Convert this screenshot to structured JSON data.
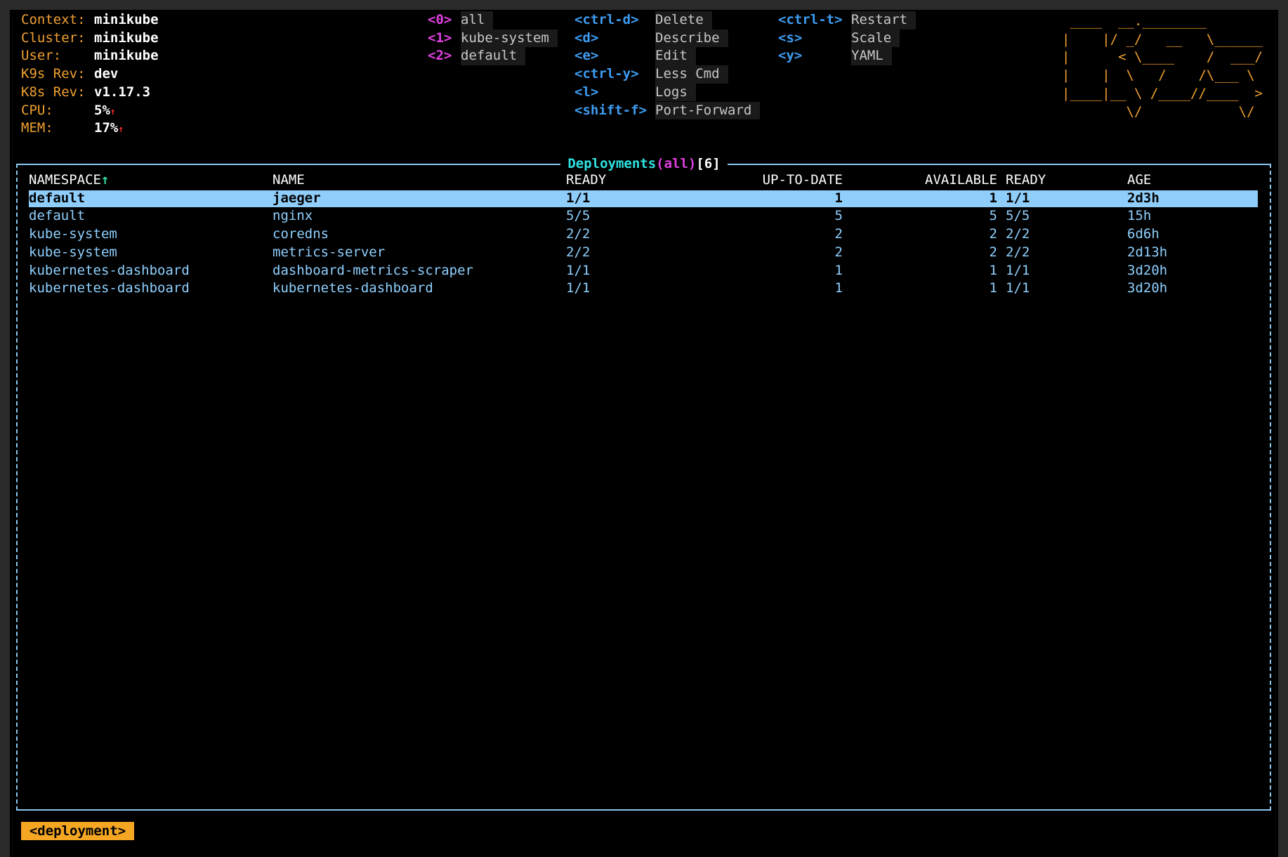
{
  "header": {
    "info": [
      {
        "label": "Context:",
        "value": "minikube"
      },
      {
        "label": "Cluster:",
        "value": "minikube"
      },
      {
        "label": "User:",
        "value": "minikube"
      },
      {
        "label": "K9s Rev:",
        "value": "dev"
      },
      {
        "label": "K8s Rev:",
        "value": "v1.17.3"
      },
      {
        "label": "CPU:",
        "value": "5%",
        "trend": "↑"
      },
      {
        "label": "MEM:",
        "value": "17%",
        "trend": "↑"
      }
    ],
    "namespaces": [
      {
        "key": "<0>",
        "name": "all"
      },
      {
        "key": "<1>",
        "name": "kube-system"
      },
      {
        "key": "<2>",
        "name": "default"
      }
    ],
    "shortcuts": [
      [
        {
          "key": "<ctrl-d>",
          "action": "Delete"
        },
        {
          "key": "<d>",
          "action": "Describe"
        },
        {
          "key": "<e>",
          "action": "Edit"
        },
        {
          "key": "<ctrl-y>",
          "action": "Less Cmd"
        },
        {
          "key": "<l>",
          "action": "Logs"
        },
        {
          "key": "<shift-f>",
          "action": "Port-Forward"
        }
      ],
      [
        {
          "key": "<ctrl-t>",
          "action": "Restart"
        },
        {
          "key": "<s>",
          "action": "Scale"
        },
        {
          "key": "<y>",
          "action": "YAML"
        }
      ]
    ],
    "logo": [
      " ____  __.________       ",
      "|    |/ _/   __   \\______",
      "|      < \\____    /  ___/",
      "|    |  \\   /    /\\___ \\ ",
      "|____|__ \\ /____//____  >",
      "        \\/            \\/ "
    ]
  },
  "table": {
    "title": "Deployments",
    "filter": "(all)",
    "count": "[6]",
    "sort_indicator": "↑",
    "columns": [
      "NAMESPACE",
      "NAME",
      "READY",
      "UP-TO-DATE",
      "AVAILABLE",
      "READY",
      "AGE"
    ],
    "rows": [
      [
        "default",
        "jaeger",
        "1/1",
        "1",
        "1",
        "1/1",
        "2d3h"
      ],
      [
        "default",
        "nginx",
        "5/5",
        "5",
        "5",
        "5/5",
        "15h"
      ],
      [
        "kube-system",
        "coredns",
        "2/2",
        "2",
        "2",
        "2/2",
        "6d6h"
      ],
      [
        "kube-system",
        "metrics-server",
        "2/2",
        "2",
        "2",
        "2/2",
        "2d13h"
      ],
      [
        "kubernetes-dashboard",
        "dashboard-metrics-scraper",
        "1/1",
        "1",
        "1",
        "1/1",
        "3d20h"
      ],
      [
        "kubernetes-dashboard",
        "kubernetes-dashboard",
        "1/1",
        "1",
        "1",
        "1/1",
        "3d20h"
      ]
    ],
    "selected_row": 0
  },
  "footer": {
    "crumb": "<deployment>"
  }
}
